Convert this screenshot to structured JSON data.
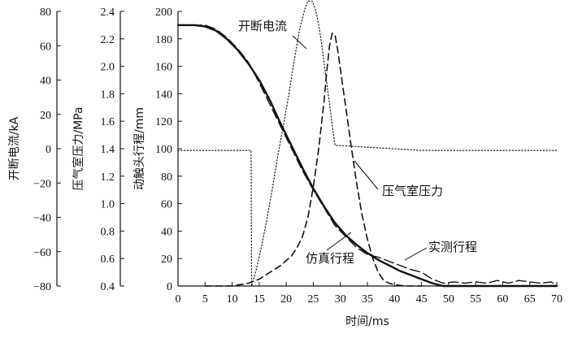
{
  "chart_data": {
    "type": "line",
    "xlabel": "时间/ms",
    "x_ticks": [
      0,
      5,
      10,
      15,
      20,
      25,
      30,
      35,
      40,
      45,
      50,
      55,
      60,
      65,
      70
    ],
    "xlim": [
      0,
      70
    ],
    "y_axes": [
      {
        "key": "current",
        "label": "开断电流/kA",
        "ylim": [
          -80,
          80
        ],
        "ticks": [
          80,
          60,
          40,
          20,
          0,
          -20,
          -40,
          -60,
          -80
        ],
        "tick_labels": [
          "80",
          "60",
          "40",
          "20",
          "0",
          "−20",
          "−40",
          "−60",
          "−80"
        ]
      },
      {
        "key": "pressure",
        "label": "压气室压力/MPa",
        "ylim": [
          0.4,
          2.4
        ],
        "ticks": [
          2.4,
          2.2,
          2.0,
          1.8,
          1.6,
          1.4,
          1.2,
          1.0,
          0.8,
          0.6,
          0.4
        ],
        "tick_labels": [
          "2.4",
          "2.2",
          "2.0",
          "1.8",
          "1.6",
          "1.4",
          "1.2",
          "1.0",
          "0.8",
          "0.6",
          "0.4"
        ]
      },
      {
        "key": "travel",
        "label": "动触头行程/mm",
        "ylim": [
          0,
          200
        ],
        "ticks": [
          200,
          180,
          160,
          140,
          120,
          100,
          80,
          60,
          40,
          20,
          0
        ],
        "tick_labels": [
          "200",
          "180",
          "160",
          "140",
          "120",
          "100",
          "80",
          "60",
          "40",
          "20",
          "0"
        ]
      }
    ],
    "series": [
      {
        "key": "simulated_travel",
        "name": "仿真行程",
        "axis": "travel",
        "style": "solid",
        "x": [
          0,
          3,
          5,
          7,
          9,
          11,
          13,
          15,
          17,
          19,
          21,
          23,
          25,
          27,
          29,
          31,
          33,
          35,
          37,
          39,
          41,
          43,
          45,
          47,
          48,
          49,
          52,
          55,
          60,
          65,
          70
        ],
        "y": [
          190,
          190,
          189,
          186,
          180,
          172,
          162,
          150,
          135,
          118,
          102,
          86,
          71,
          58,
          46,
          37,
          30,
          24,
          19,
          15,
          11,
          8,
          5,
          2,
          1,
          0,
          0,
          0,
          0,
          0,
          0
        ]
      },
      {
        "key": "measured_travel",
        "name": "实测行程",
        "axis": "travel",
        "style": "long-dash",
        "x": [
          0,
          3,
          5,
          7,
          9,
          11,
          13,
          15,
          17,
          19,
          21,
          23,
          25,
          27,
          29,
          31,
          33,
          35,
          37,
          39,
          41,
          43,
          45,
          47,
          49,
          51,
          53,
          55,
          57,
          59,
          61,
          63,
          65,
          67,
          69,
          70
        ],
        "y": [
          190,
          190,
          190,
          187,
          181,
          173,
          163,
          148,
          132,
          116,
          100,
          84,
          70,
          57,
          44,
          36,
          28,
          23,
          21,
          18,
          15,
          12,
          10,
          5,
          2,
          3,
          2,
          3,
          2,
          4,
          2,
          4,
          3,
          2,
          3,
          0
        ]
      },
      {
        "key": "chamber_pressure",
        "name": "压气室压力",
        "axis": "pressure",
        "style": "dash",
        "x": [
          5,
          10,
          13,
          15,
          17,
          19,
          21,
          22,
          23,
          24,
          25,
          26,
          27,
          27.5,
          28,
          28.5,
          29,
          29.5,
          30,
          31,
          32,
          33,
          34,
          35,
          36,
          37,
          38,
          39,
          40,
          42,
          45
        ],
        "y": [
          0.4,
          0.4,
          0.42,
          0.45,
          0.5,
          0.55,
          0.62,
          0.68,
          0.76,
          0.9,
          1.12,
          1.4,
          1.75,
          1.97,
          2.15,
          2.24,
          2.23,
          2.12,
          1.98,
          1.7,
          1.42,
          1.15,
          0.92,
          0.74,
          0.6,
          0.5,
          0.44,
          0.42,
          0.41,
          0.4,
          0.4
        ]
      },
      {
        "key": "breaking_current",
        "name": "开断电流",
        "axis": "current",
        "style": "dot",
        "x": [
          0,
          13.5,
          13.6,
          14.5,
          15.5,
          16.5,
          17.5,
          18.5,
          19.5,
          20.5,
          21.5,
          22.5,
          23.5,
          24,
          24.8,
          25.5,
          26,
          26.5,
          27,
          27.5,
          28,
          28.5,
          29,
          45,
          70
        ],
        "y": [
          -1,
          -1,
          -80,
          -70,
          -56,
          -40,
          -22,
          -3,
          14,
          32,
          52,
          70,
          82,
          86,
          86,
          80,
          72,
          62,
          50,
          38,
          26,
          14,
          2,
          -1,
          -1
        ]
      }
    ],
    "annotations": [
      {
        "text": "开断电流",
        "series": "breaking_current"
      },
      {
        "text": "压气室压力",
        "series": "chamber_pressure"
      },
      {
        "text": "仿真行程",
        "series": "simulated_travel"
      },
      {
        "text": "实测行程",
        "series": "measured_travel"
      }
    ],
    "grid": false
  }
}
